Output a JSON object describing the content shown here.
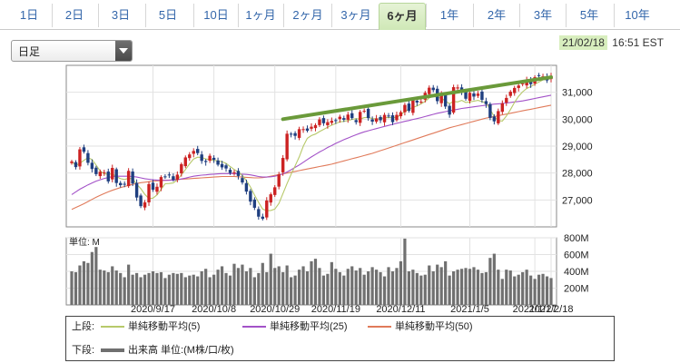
{
  "tabs": [
    {
      "label": "1日"
    },
    {
      "label": "2日"
    },
    {
      "label": "3日"
    },
    {
      "label": "5日"
    },
    {
      "label": "10日"
    },
    {
      "label": "1ヶ月"
    },
    {
      "label": "2ヶ月"
    },
    {
      "label": "3ヶ月"
    },
    {
      "label": "6ヶ月",
      "active": true
    },
    {
      "label": "1年"
    },
    {
      "label": "2年"
    },
    {
      "label": "3年"
    },
    {
      "label": "5年"
    },
    {
      "label": "10年"
    }
  ],
  "period_select": {
    "value": "日足"
  },
  "timestamp": {
    "date": "21/02/18",
    "time": "16:51 EST"
  },
  "colors": {
    "up": "#cc2222",
    "down": "#1f3f80",
    "ma5": "#b7c96a",
    "ma25": "#a352c8",
    "ma50": "#e07a5a",
    "volume": "#707070",
    "trend": "#6a9a3a"
  },
  "chart_data": [
    {
      "type": "candlestick",
      "ylim": [
        26000,
        32000
      ],
      "y_ticks": [
        "27,000",
        "28,000",
        "29,000",
        "30,000",
        "31,000"
      ],
      "y_tick_values": [
        27000,
        28000,
        29000,
        30000,
        31000
      ],
      "x_ticks": [
        "2020/9/17",
        "2020/10/8",
        "2020/10/29",
        "2020/11/19",
        "2020/12/11",
        "2021/1/5",
        "2021/1/27",
        "2021/2/18"
      ],
      "closes": [
        28430,
        28220,
        28880,
        28790,
        28380,
        28150,
        27960,
        28050,
        28030,
        27690,
        28190,
        27630,
        27550,
        27590,
        28080,
        27610,
        27090,
        26770,
        26910,
        27590,
        27380,
        27490,
        27850,
        27870,
        27930,
        27750,
        27940,
        28330,
        28580,
        28690,
        28820,
        28740,
        28450,
        28410,
        28640,
        28490,
        28310,
        28210,
        28170,
        28000,
        28030,
        27890,
        27650,
        27310,
        26940,
        26710,
        26380,
        26300,
        26980,
        27210,
        27470,
        27950,
        28560,
        29460,
        29430,
        29380,
        29630,
        29630,
        29570,
        29720,
        29780,
        29990,
        29850,
        29890,
        29940,
        29930,
        30090,
        29980,
        30170,
        30040,
        29890,
        30270,
        30310,
        30040,
        29910,
        30030,
        29960,
        30160,
        30120,
        29890,
        30160,
        30260,
        30530,
        30310,
        30710,
        30620,
        30650,
        30980,
        31170,
        31080,
        30670,
        30920,
        30470,
        30170,
        31190,
        31180,
        31020,
        30760,
        30980,
        30840,
        30950,
        30720,
        30560,
        30050,
        29920,
        30300,
        30590,
        30790,
        31020,
        31160,
        31250,
        31330,
        31460,
        31300,
        31560,
        31630,
        31590,
        31440,
        31600
      ],
      "ma5": [
        28430,
        28280,
        28360,
        28470,
        28570,
        28500,
        28300,
        28080,
        27970,
        27960,
        27970,
        27870,
        27790,
        27760,
        27800,
        27790,
        27580,
        27420,
        27210,
        27050,
        27070,
        27190,
        27390,
        27600,
        27610,
        27630,
        27750,
        27930,
        28130,
        28340,
        28520,
        28590,
        28580,
        28520,
        28500,
        28470,
        28450,
        28420,
        28360,
        28240,
        28130,
        28040,
        27910,
        27720,
        27480,
        27180,
        26910,
        26660,
        26600,
        26610,
        26660,
        26870,
        27240,
        27610,
        27950,
        28270,
        28600,
        29000,
        29290,
        29390,
        29450,
        29540,
        29620,
        29700,
        29780,
        29840,
        29900,
        29920,
        29950,
        29990,
        30020,
        30000,
        30060,
        30070,
        30020,
        30010,
        30010,
        30060,
        30060,
        30060,
        30070,
        30160,
        30290,
        30370,
        30440,
        30490,
        30570,
        30660,
        30790,
        30850,
        30810,
        30780,
        30670,
        30580,
        30660,
        30640,
        30700,
        30620,
        30640,
        30670,
        30700,
        30650,
        30600,
        30370,
        30090,
        29950,
        29930,
        30120,
        30360,
        30620,
        30850,
        31020,
        31140,
        31210,
        31300,
        31380,
        31460,
        31470,
        31510
      ],
      "ma25": [
        27200,
        27300,
        27400,
        27480,
        27560,
        27630,
        27700,
        27750,
        27800,
        27830,
        27870,
        27880,
        27880,
        27880,
        27880,
        27870,
        27850,
        27820,
        27790,
        27770,
        27750,
        27740,
        27730,
        27730,
        27730,
        27740,
        27750,
        27780,
        27810,
        27850,
        27880,
        27900,
        27920,
        27930,
        27950,
        27960,
        27970,
        27980,
        27980,
        27980,
        27980,
        27970,
        27960,
        27950,
        27930,
        27900,
        27870,
        27850,
        27850,
        27860,
        27880,
        27920,
        27970,
        28040,
        28120,
        28210,
        28300,
        28400,
        28500,
        28600,
        28690,
        28780,
        28860,
        28950,
        29020,
        29100,
        29170,
        29240,
        29300,
        29360,
        29420,
        29480,
        29530,
        29570,
        29610,
        29650,
        29690,
        29730,
        29770,
        29810,
        29850,
        29880,
        29920,
        29950,
        29990,
        30020,
        30060,
        30100,
        30140,
        30180,
        30220,
        30250,
        30280,
        30310,
        30340,
        30370,
        30400,
        30420,
        30440,
        30460,
        30480,
        30500,
        30520,
        30540,
        30560,
        30570,
        30580,
        30600,
        30620,
        30640,
        30660,
        30680,
        30710,
        30740,
        30770,
        30800,
        30830,
        30860,
        30890
      ],
      "ma50": [
        26650,
        26720,
        26790,
        26860,
        26940,
        27020,
        27100,
        27170,
        27240,
        27300,
        27360,
        27410,
        27460,
        27500,
        27540,
        27580,
        27610,
        27640,
        27660,
        27680,
        27700,
        27710,
        27720,
        27730,
        27740,
        27750,
        27760,
        27770,
        27780,
        27790,
        27800,
        27810,
        27820,
        27830,
        27840,
        27850,
        27860,
        27870,
        27870,
        27870,
        27870,
        27860,
        27850,
        27840,
        27830,
        27820,
        27820,
        27830,
        27850,
        27880,
        27910,
        27940,
        27970,
        28000,
        28030,
        28060,
        28090,
        28120,
        28150,
        28180,
        28210,
        28240,
        28270,
        28300,
        28330,
        28370,
        28410,
        28450,
        28490,
        28530,
        28570,
        28610,
        28650,
        28690,
        28730,
        28780,
        28830,
        28880,
        28930,
        28980,
        29030,
        29080,
        29130,
        29180,
        29230,
        29280,
        29330,
        29380,
        29430,
        29480,
        29530,
        29580,
        29630,
        29680,
        29720,
        29760,
        29800,
        29840,
        29880,
        29920,
        29960,
        30000,
        30040,
        30070,
        30100,
        30130,
        30160,
        30190,
        30220,
        30250,
        30280,
        30310,
        30340,
        30370,
        30400,
        30430,
        30460,
        30490,
        30520
      ],
      "trendline": [
        [
          52,
          30000
        ],
        [
          118,
          31560
        ]
      ]
    },
    {
      "type": "bar",
      "unit": "単位: M",
      "ylim": [
        0,
        800
      ],
      "y_ticks": [
        "200M",
        "400M",
        "600M",
        "800M"
      ],
      "y_tick_values": [
        200,
        400,
        600,
        800
      ],
      "values": [
        400,
        390,
        470,
        520,
        500,
        630,
        690,
        420,
        410,
        390,
        460,
        410,
        380,
        330,
        480,
        360,
        380,
        330,
        360,
        380,
        400,
        380,
        390,
        320,
        360,
        380,
        370,
        380,
        330,
        350,
        360,
        340,
        400,
        430,
        330,
        360,
        420,
        460,
        380,
        350,
        490,
        440,
        480,
        400,
        440,
        330,
        380,
        500,
        390,
        610,
        440,
        460,
        390,
        470,
        330,
        350,
        420,
        460,
        400,
        520,
        550,
        440,
        350,
        370,
        510,
        430,
        390,
        350,
        430,
        460,
        410,
        440,
        360,
        400,
        450,
        420,
        390,
        340,
        450,
        400,
        440,
        520,
        790,
        400,
        420,
        380,
        350,
        360,
        470,
        400,
        480,
        450,
        520,
        350,
        400,
        420,
        430,
        440,
        430,
        450,
        420,
        380,
        390,
        560,
        610,
        420,
        310,
        420,
        410,
        340,
        360,
        390,
        420,
        350,
        310,
        360,
        370,
        340,
        320
      ]
    }
  ],
  "legend": {
    "top_label": "上段:",
    "bottom_label": "下段:",
    "items": [
      "単純移動平均(5)",
      "単純移動平均(25)",
      "単純移動平均(50)"
    ],
    "volume_label": "出来高 単位:(M株/口/枚)"
  }
}
